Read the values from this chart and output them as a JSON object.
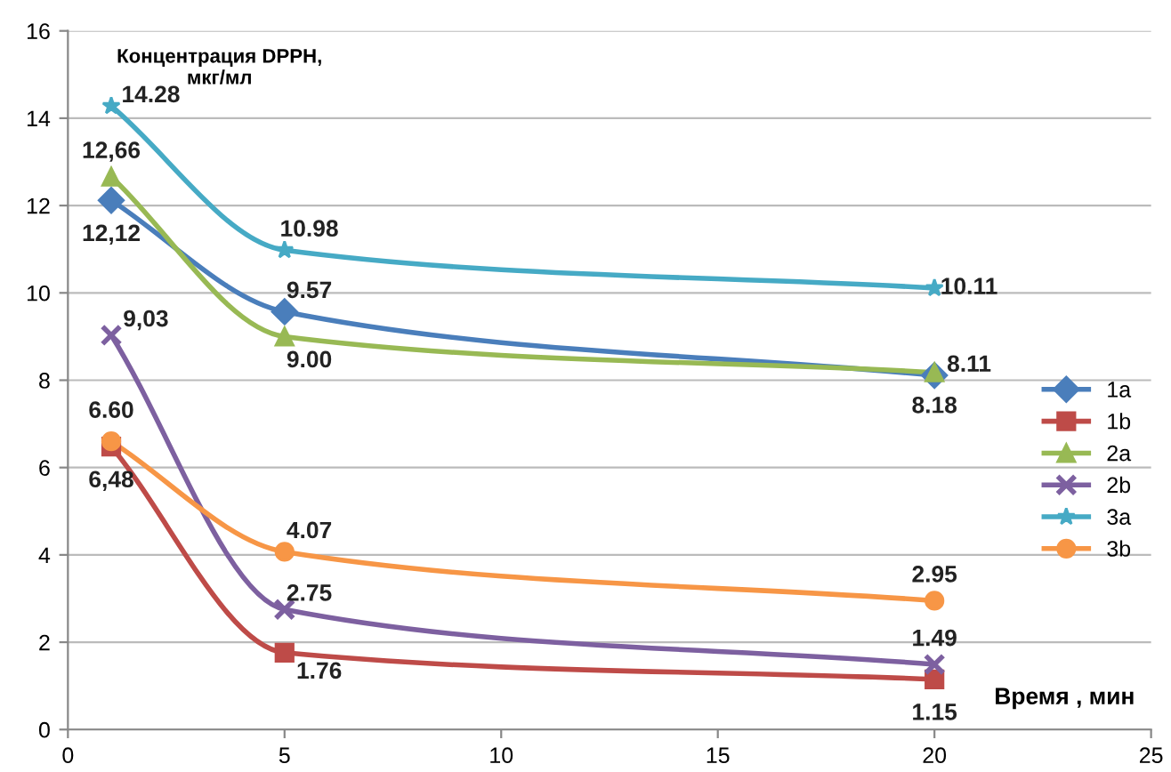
{
  "chart_data": {
    "type": "line",
    "xlabel": "Время , мин",
    "ylabel": "Концентрация DPPH,\nмкг/мл",
    "x": [
      1,
      5,
      20
    ],
    "xlim": [
      0,
      25
    ],
    "xticks": [
      0,
      5,
      10,
      15,
      20,
      25
    ],
    "ylim": [
      0,
      16
    ],
    "yticks": [
      0,
      2,
      4,
      6,
      8,
      10,
      12,
      14,
      16
    ],
    "grid": "y",
    "legend": "right",
    "line_style": "solid",
    "series": [
      {
        "name": "1a",
        "color": "#4a7ebb",
        "marker": "diamond",
        "values": [
          12.12,
          9.57,
          8.11
        ],
        "value_labels": [
          "12,12",
          "9.57",
          "8.11"
        ]
      },
      {
        "name": "1b",
        "color": "#be4b48",
        "marker": "square",
        "values": [
          6.48,
          1.76,
          1.15
        ],
        "value_labels": [
          "6,48",
          "1.76",
          "1.15"
        ]
      },
      {
        "name": "2a",
        "color": "#98b954",
        "marker": "triangle",
        "values": [
          12.66,
          9.0,
          8.18
        ],
        "value_labels": [
          "12,66",
          "9.00",
          "8.18"
        ]
      },
      {
        "name": "2b",
        "color": "#7d60a0",
        "marker": "cross",
        "values": [
          9.03,
          2.75,
          1.49
        ],
        "value_labels": [
          "9,03",
          "2.75",
          "1.49"
        ]
      },
      {
        "name": "3a",
        "color": "#46aac5",
        "marker": "star",
        "values": [
          14.28,
          10.98,
          10.11
        ],
        "value_labels": [
          "14.28",
          "10.98",
          "10.11"
        ]
      },
      {
        "name": "3b",
        "color": "#f79646",
        "marker": "circle",
        "values": [
          6.6,
          4.07,
          2.95
        ],
        "value_labels": [
          "6.60",
          "4.07",
          "2.95"
        ]
      }
    ]
  }
}
